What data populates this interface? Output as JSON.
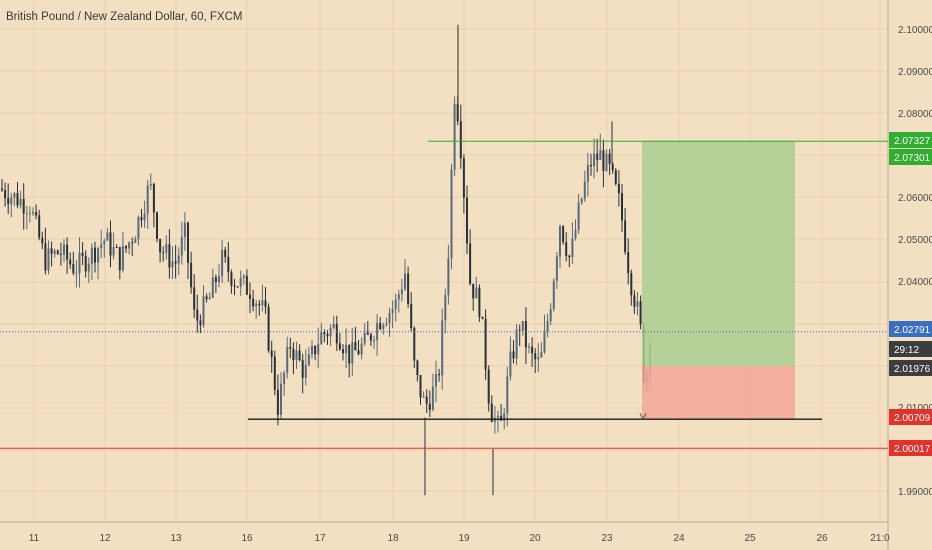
{
  "header": {
    "title": "British Pound / New Zealand Dollar, 60, FXCM"
  },
  "colors": {
    "background": "#f3dfc1",
    "candle_up": "#5a6a78",
    "candle_down": "#2a3038",
    "grid": "#e7d2b4",
    "axis_text": "#4a4a4a",
    "target_line": "#2fae2f",
    "stop_line": "#e0332e",
    "support_line": "#1a1a1a",
    "current_price_line": "#3a6ec0",
    "profit_zone": "#a9cf8f",
    "loss_zone": "#f1a796"
  },
  "chart_data": {
    "type": "candlestick",
    "ylim": [
      1.985,
      2.105
    ],
    "y_ticks": [
      "2.10000",
      "2.09000",
      "2.08000",
      "2.06000",
      "2.05000",
      "2.04000",
      "2.01000",
      "1.99000"
    ],
    "x_ticks": [
      "11",
      "12",
      "13",
      "16",
      "17",
      "18",
      "19",
      "20",
      "23",
      "24",
      "25",
      "26",
      "21:0"
    ],
    "price_path": [
      [
        0,
        2.062
      ],
      [
        14,
        2.06
      ],
      [
        30,
        2.058
      ],
      [
        45,
        2.045
      ],
      [
        60,
        2.047
      ],
      [
        75,
        2.043
      ],
      [
        90,
        2.046
      ],
      [
        105,
        2.05
      ],
      [
        120,
        2.045
      ],
      [
        135,
        2.052
      ],
      [
        150,
        2.063
      ],
      [
        160,
        2.048
      ],
      [
        175,
        2.044
      ],
      [
        185,
        2.051
      ],
      [
        195,
        2.03
      ],
      [
        210,
        2.036
      ],
      [
        222,
        2.045
      ],
      [
        235,
        2.04
      ],
      [
        250,
        2.038
      ],
      [
        265,
        2.032
      ],
      [
        278,
        2.01
      ],
      [
        290,
        2.025
      ],
      [
        305,
        2.018
      ],
      [
        320,
        2.027
      ],
      [
        335,
        2.029
      ],
      [
        350,
        2.022
      ],
      [
        365,
        2.025
      ],
      [
        380,
        2.031
      ],
      [
        395,
        2.034
      ],
      [
        405,
        2.042
      ],
      [
        415,
        2.018
      ],
      [
        425,
        2.01
      ],
      [
        438,
        2.016
      ],
      [
        448,
        2.045
      ],
      [
        455,
        2.087
      ],
      [
        460,
        2.075
      ],
      [
        470,
        2.04
      ],
      [
        480,
        2.034
      ],
      [
        490,
        2.01
      ],
      [
        500,
        2.004
      ],
      [
        510,
        2.02
      ],
      [
        520,
        2.03
      ],
      [
        530,
        2.022
      ],
      [
        540,
        2.02
      ],
      [
        550,
        2.034
      ],
      [
        560,
        2.054
      ],
      [
        570,
        2.045
      ],
      [
        580,
        2.058
      ],
      [
        590,
        2.068
      ],
      [
        600,
        2.07
      ],
      [
        610,
        2.066
      ],
      [
        620,
        2.058
      ],
      [
        630,
        2.041
      ],
      [
        640,
        2.03
      ],
      [
        645,
        2.014
      ],
      [
        650,
        2.028
      ]
    ],
    "levels": {
      "target": 2.07327,
      "entry": 2.01976,
      "stop": 2.00709,
      "support": 2.00709,
      "red_line": 2.00017,
      "current": 2.02791
    },
    "price_labels": [
      {
        "key": "target_label",
        "text": "2.07327",
        "color": "#2fae2f",
        "value": 2.07327
      },
      {
        "key": "target_label2",
        "text": "2.07301",
        "color": "#2fae2f",
        "value": 2.07301
      },
      {
        "key": "current_label",
        "text": "2.02791",
        "color": "#3a6ec0",
        "value": 2.02791
      },
      {
        "key": "timer_label",
        "text": "29:12",
        "color": "#3d3d3d",
        "value": 2.0222
      },
      {
        "key": "entry_label",
        "text": "2.01976",
        "color": "#3d3d3d",
        "value": 2.01976
      },
      {
        "key": "stop_label",
        "text": "2.00709",
        "color": "#e0332e",
        "value": 2.00709
      },
      {
        "key": "red_label",
        "text": "2.00017",
        "color": "#e0332e",
        "value": 2.00017
      }
    ]
  }
}
